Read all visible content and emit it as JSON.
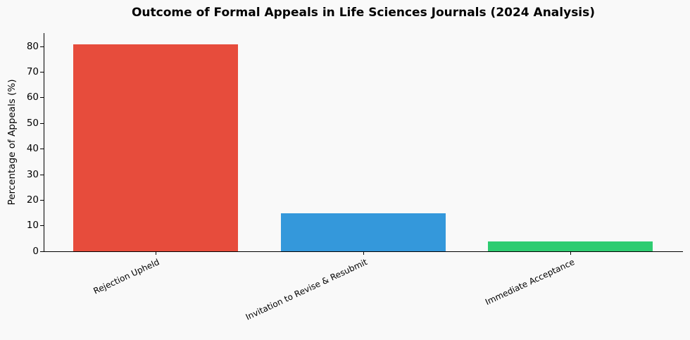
{
  "chart_data": {
    "type": "bar",
    "title": "Outcome of Formal Appeals in Life Sciences Journals (2024 Analysis)",
    "xlabel": "",
    "ylabel": "Percentage of Appeals (%)",
    "categories": [
      "Rejection Upheld",
      "Invitation to Revise & Resubmit",
      "Immediate Acceptance"
    ],
    "values": [
      80.7,
      14.8,
      3.9
    ],
    "colors": [
      "#e74c3c",
      "#3498db",
      "#2ecc71"
    ],
    "ylim": [
      0,
      85
    ],
    "yticks": [
      0,
      10,
      20,
      30,
      40,
      50,
      60,
      70,
      80
    ],
    "grid": false,
    "legend": null
  }
}
